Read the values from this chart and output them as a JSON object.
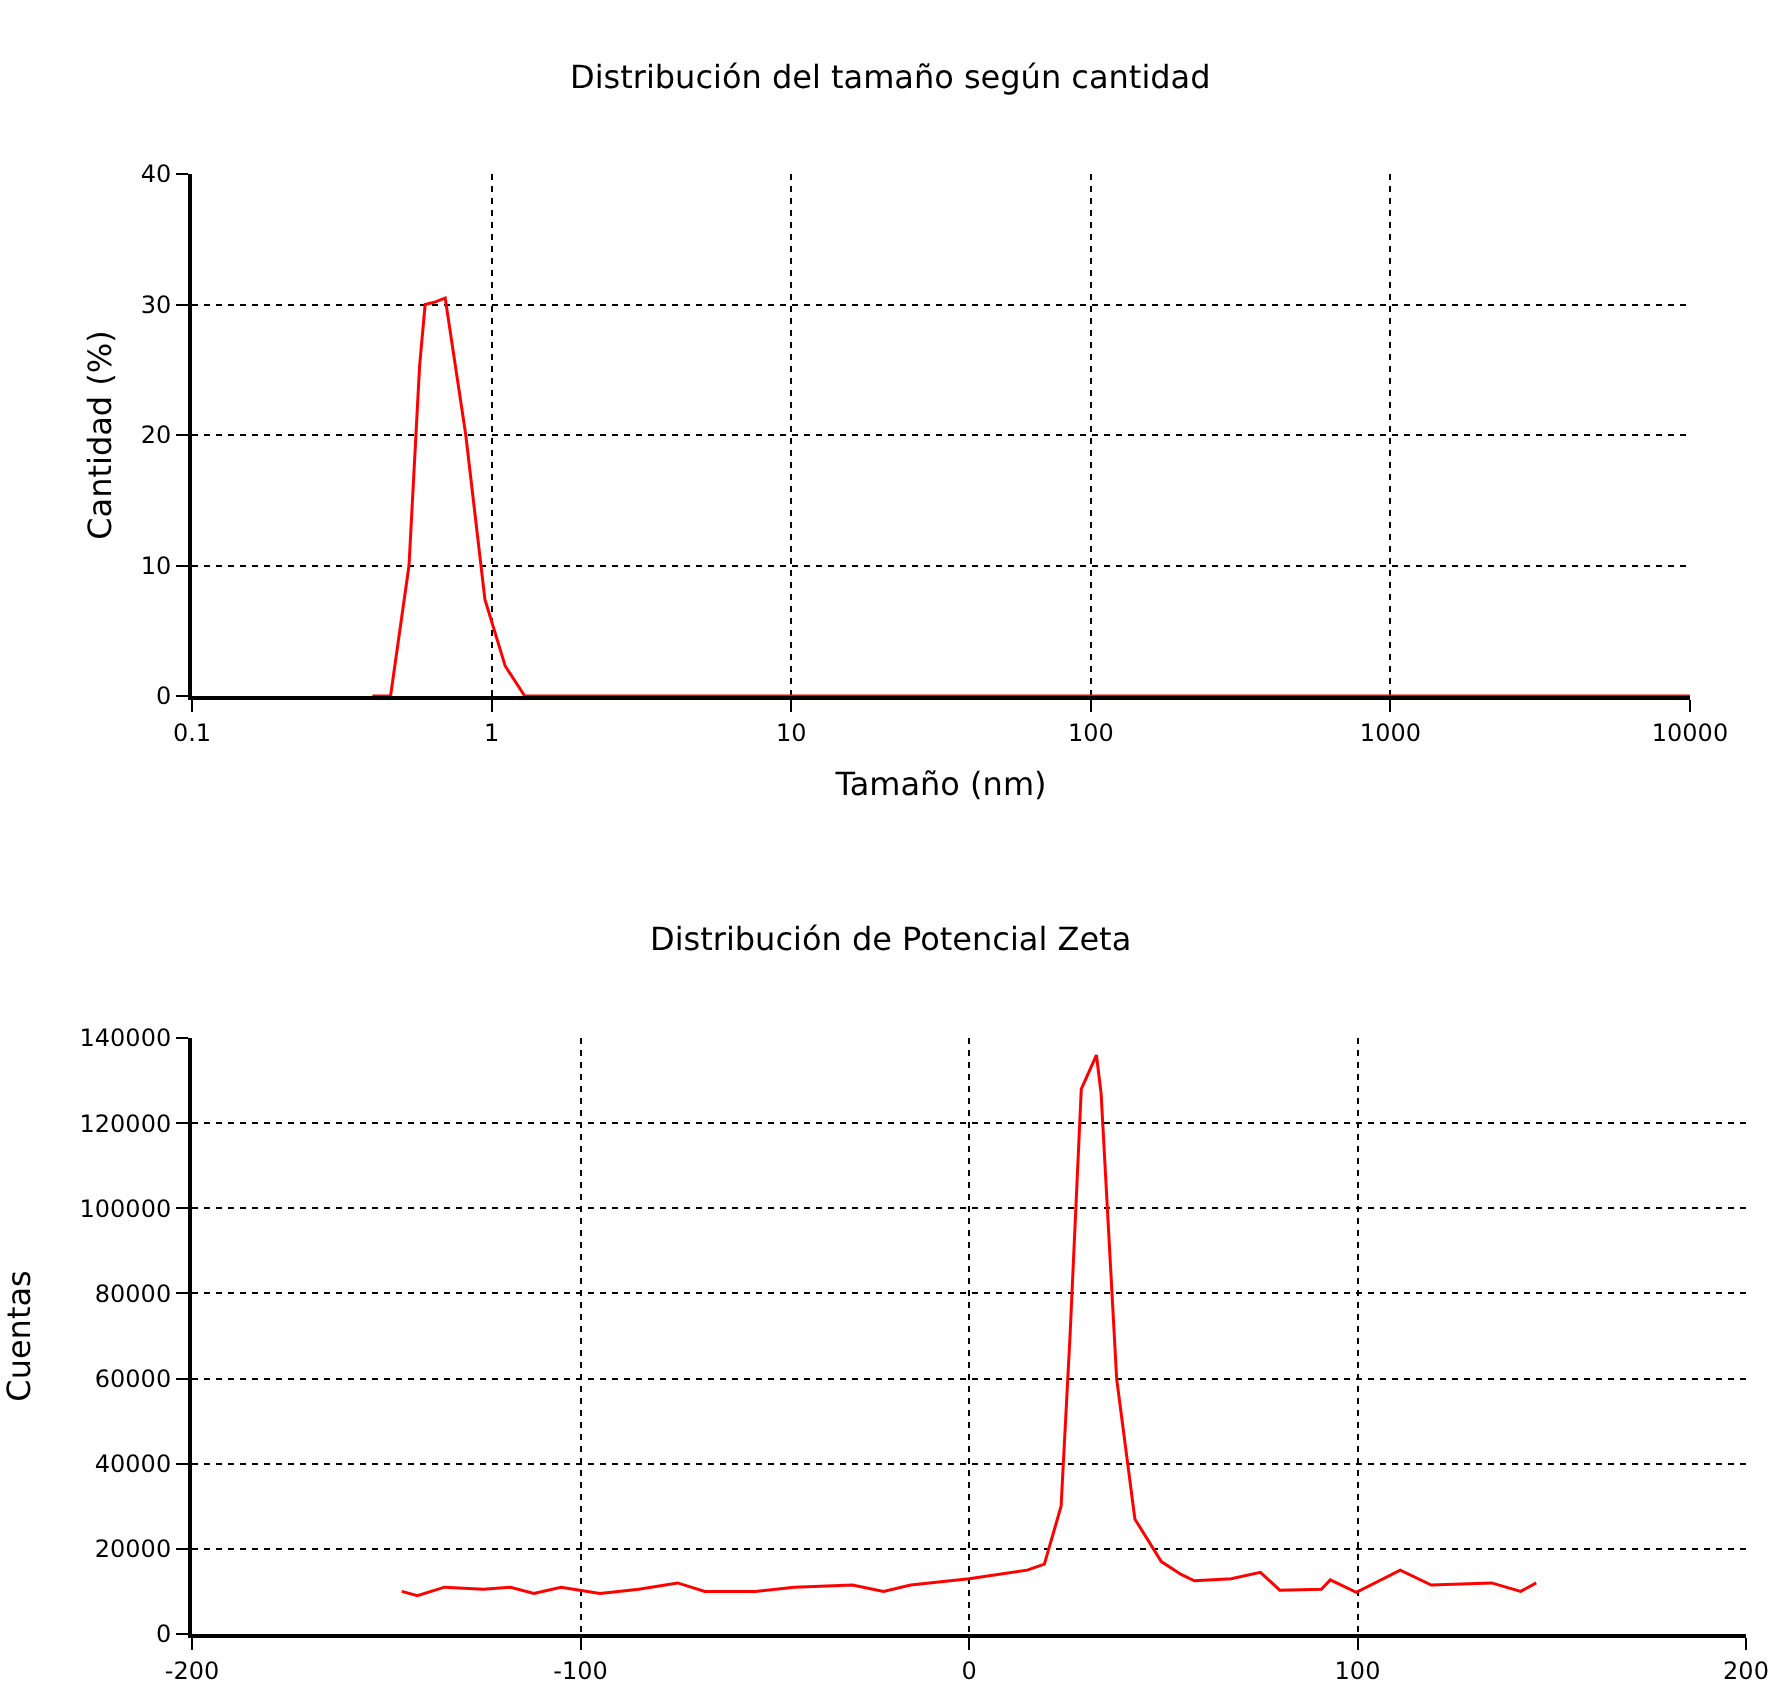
{
  "chart_data": [
    {
      "type": "line",
      "title": "Distribución del tamaño según cantidad",
      "xlabel": "Tamaño (nm)",
      "ylabel": "Cantidad (%)",
      "log": "x",
      "grid": true,
      "marker": "none",
      "line_style": "solid",
      "x": [
        0.4,
        0.46,
        0.53,
        0.575,
        0.6,
        0.65,
        0.7,
        0.82,
        0.95,
        1.11,
        1.29,
        2,
        10,
        100,
        1000,
        10000
      ],
      "series": [
        {
          "color": "#ff0000",
          "values": [
            0,
            0,
            10,
            25.3,
            30,
            30.2,
            30.5,
            20,
            7.4,
            2.3,
            0,
            0,
            0,
            0,
            0,
            0
          ]
        }
      ],
      "xlim": [
        0.1,
        10000
      ],
      "xticks": [
        0.1,
        1,
        10,
        100,
        1000,
        10000
      ],
      "ylim": [
        0,
        40
      ],
      "yticks": [
        0,
        10,
        20,
        30,
        40
      ]
    },
    {
      "type": "line",
      "title": "Distribución de Potencial Zeta",
      "ylabel": "Cuentas",
      "grid": true,
      "marker": "none",
      "line_style": "solid",
      "x": [
        -146,
        -142,
        -135,
        -125,
        -118,
        -112,
        -105,
        -95,
        -85,
        -75,
        -68,
        -55,
        -45,
        -30,
        -22,
        -15,
        0,
        15,
        19.4,
        23.7,
        26,
        28.9,
        32.8,
        34,
        38,
        42.7,
        49.5,
        54.6,
        58,
        67.5,
        75,
        80,
        90.7,
        93,
        99.7,
        111,
        119,
        134.5,
        142,
        146
      ],
      "series": [
        {
          "color": "#ff0000",
          "values": [
            10000,
            9000,
            11000,
            10500,
            11000,
            9500,
            11000,
            9500,
            10500,
            12000,
            10000,
            10000,
            11000,
            11500,
            10000,
            11500,
            13000,
            15000,
            16400,
            30000,
            70000,
            128000,
            136000,
            127000,
            60000,
            27000,
            17000,
            14000,
            12500,
            13000,
            14500,
            10300,
            10500,
            12700,
            9800,
            15000,
            11500,
            12000,
            10000,
            12000
          ]
        }
      ],
      "xlim": [
        -200,
        200
      ],
      "xticks": [
        -200,
        -100,
        0,
        100,
        200
      ],
      "ylim": [
        0,
        140000
      ],
      "yticks": [
        0,
        20000,
        40000,
        60000,
        80000,
        100000,
        120000,
        140000
      ]
    }
  ]
}
